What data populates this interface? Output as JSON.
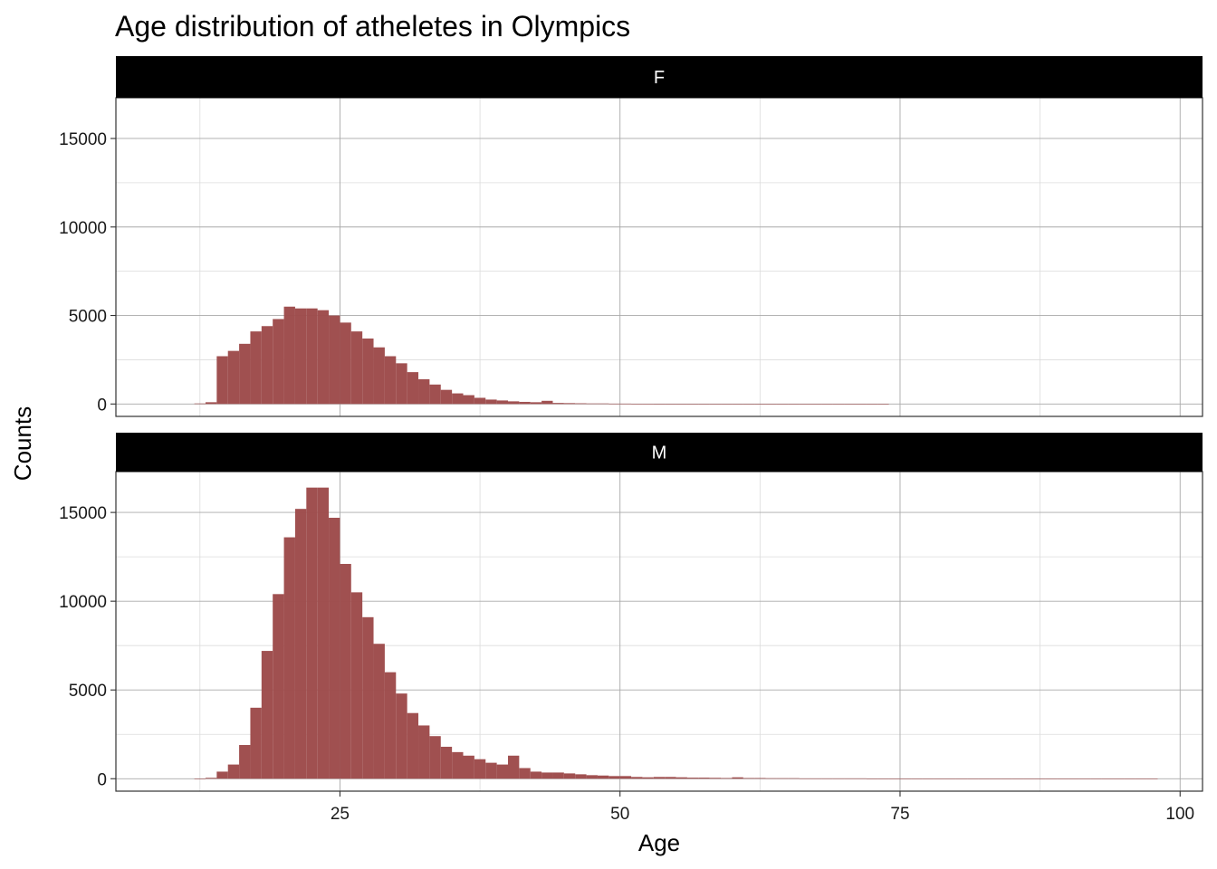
{
  "chart_data": {
    "type": "bar",
    "title": "Age distribution of atheletes in Olympics",
    "xlabel": "Age",
    "ylabel": "Counts",
    "xlim": [
      5,
      102
    ],
    "ylim": [
      -700,
      17300
    ],
    "x_ticks": [
      25,
      50,
      75,
      100
    ],
    "y_ticks": [
      0,
      5000,
      10000,
      15000
    ],
    "grid": true,
    "bar_color": "#9E4D4D",
    "bin_start": 10,
    "bin_width": 1,
    "facets": [
      {
        "label": "F",
        "values": [
          0,
          0,
          30,
          100,
          2700,
          3000,
          3400,
          4100,
          4400,
          4800,
          5500,
          5400,
          5400,
          5300,
          5000,
          4600,
          4100,
          3700,
          3200,
          2700,
          2300,
          1800,
          1400,
          1100,
          800,
          600,
          500,
          350,
          250,
          200,
          150,
          120,
          100,
          180,
          60,
          50,
          40,
          30,
          30,
          20,
          20,
          15,
          15,
          10,
          10,
          10,
          10,
          10,
          10,
          10,
          10,
          10,
          10,
          10,
          10,
          10,
          10,
          10,
          10,
          10,
          10,
          10,
          10,
          10,
          0,
          0,
          0,
          0,
          0,
          0,
          0,
          0,
          0,
          0,
          0,
          0,
          0,
          0,
          0,
          0,
          0,
          0,
          0,
          0,
          0,
          0,
          0,
          0
        ]
      },
      {
        "label": "M",
        "values": [
          0,
          0,
          10,
          50,
          400,
          800,
          1900,
          4000,
          7200,
          10400,
          13600,
          15200,
          16400,
          16400,
          14700,
          12100,
          10500,
          9100,
          7600,
          6000,
          4800,
          3700,
          3000,
          2400,
          1800,
          1500,
          1300,
          1100,
          900,
          800,
          1300,
          600,
          400,
          350,
          350,
          300,
          250,
          200,
          180,
          150,
          150,
          100,
          80,
          100,
          100,
          80,
          60,
          60,
          50,
          40,
          80,
          40,
          40,
          30,
          30,
          30,
          20,
          20,
          20,
          20,
          20,
          20,
          10,
          10,
          10,
          10,
          10,
          10,
          10,
          10,
          10,
          10,
          10,
          10,
          10,
          10,
          10,
          10,
          10,
          10,
          10,
          10,
          10,
          10,
          10,
          10,
          10,
          10
        ]
      }
    ]
  }
}
